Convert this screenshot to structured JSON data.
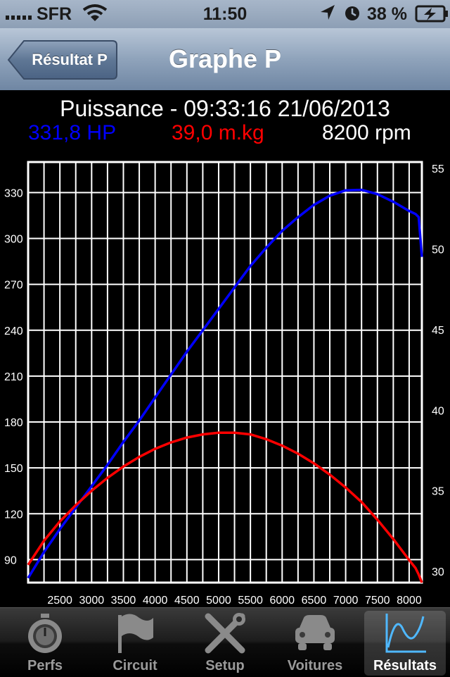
{
  "status_bar": {
    "carrier": "SFR",
    "time": "11:50",
    "battery_percent": "38 %",
    "icons": [
      "signal-bars-icon",
      "wifi-icon",
      "location-arrow-icon",
      "alarm-clock-icon",
      "battery-charging-icon"
    ]
  },
  "nav": {
    "back_label": "Résultat P",
    "title": "Graphe P"
  },
  "chart_header": {
    "title": "Puissance - 09:33:16 21/06/2013",
    "power": "331,8 HP",
    "torque": "39,0 m.kg",
    "rpm": "8200 rpm",
    "power_color": "#0000ff",
    "torque_color": "#ff0000"
  },
  "chart_data": {
    "type": "line",
    "x_ticks": [
      2500,
      3000,
      3500,
      4000,
      4500,
      5000,
      5500,
      6000,
      6500,
      7000,
      7500,
      8000
    ],
    "xlim": [
      2000,
      8200
    ],
    "y_left_ticks": [
      90,
      120,
      150,
      180,
      210,
      240,
      270,
      300,
      330
    ],
    "y_left_lim": [
      75,
      350
    ],
    "y_right_ticks": [
      30,
      35,
      40,
      45,
      50,
      55
    ],
    "y_right_lim": [
      29.3,
      55.4
    ],
    "grid": true,
    "series": [
      {
        "color": "#0000ff",
        "axis": "left",
        "x": [
          2000,
          2250,
          2500,
          2750,
          3000,
          3250,
          3500,
          3750,
          4000,
          4250,
          4500,
          4750,
          5000,
          5250,
          5500,
          5750,
          6000,
          6250,
          6500,
          6750,
          7000,
          7250,
          7500,
          7750,
          8000,
          8100,
          8150,
          8200
        ],
        "y": [
          78,
          95,
          110,
          124,
          138,
          152,
          167,
          181,
          196,
          211,
          226,
          240,
          254,
          268,
          282,
          294,
          305,
          314,
          322,
          328,
          331.5,
          331.8,
          329,
          324,
          318,
          316,
          314,
          288
        ]
      },
      {
        "color": "#ff0000",
        "axis": "right",
        "x": [
          2000,
          2250,
          2500,
          2750,
          3000,
          3250,
          3500,
          3750,
          4000,
          4250,
          4500,
          4750,
          5000,
          5250,
          5500,
          5750,
          6000,
          6250,
          6500,
          6750,
          7000,
          7250,
          7500,
          7750,
          8000,
          8100,
          8150,
          8200
        ],
        "y": [
          30.4,
          31.9,
          33.1,
          34.1,
          35.0,
          35.8,
          36.5,
          37.1,
          37.6,
          38.0,
          38.3,
          38.5,
          38.6,
          38.6,
          38.5,
          38.2,
          37.8,
          37.3,
          36.7,
          36.0,
          35.2,
          34.3,
          33.2,
          32.0,
          30.7,
          30.2,
          29.8,
          29.3
        ]
      }
    ]
  },
  "tabs": [
    {
      "label": "Perfs",
      "icon": "stopwatch-icon",
      "selected": false
    },
    {
      "label": "Circuit",
      "icon": "flag-icon",
      "selected": false
    },
    {
      "label": "Setup",
      "icon": "tools-icon",
      "selected": false
    },
    {
      "label": "Voitures",
      "icon": "car-icon",
      "selected": false
    },
    {
      "label": "Résultats",
      "icon": "graph-icon",
      "selected": true
    }
  ]
}
